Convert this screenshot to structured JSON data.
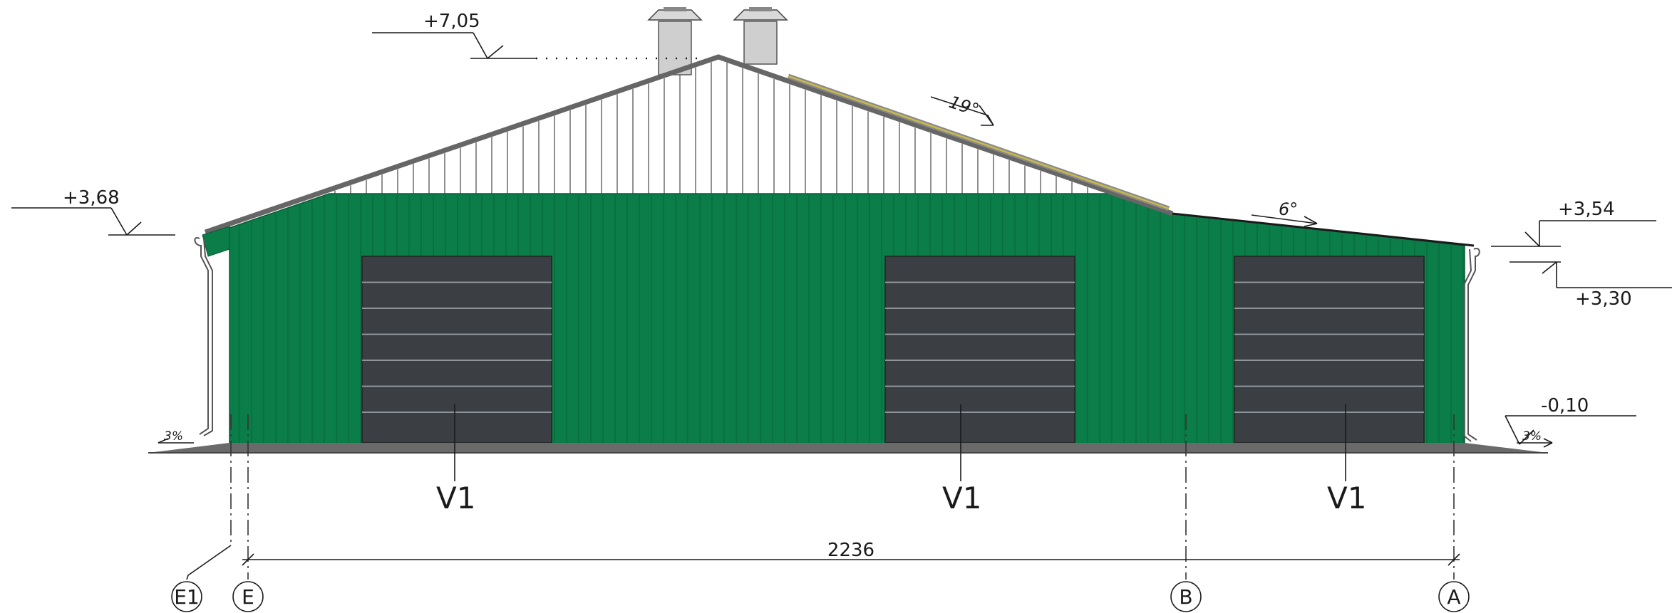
{
  "levels": {
    "ridge": "+7,05",
    "left_eave": "+3,68",
    "right_eave_top": "+3,54",
    "right_eave_bottom": "+3,30",
    "ground": "-0,10"
  },
  "slopes": {
    "main_roof": "19°",
    "lean_to_roof": "6°",
    "ground_left": "3%",
    "ground_right": "3%"
  },
  "gate_marks": [
    "V1",
    "V1",
    "V1"
  ],
  "dimension": "2236",
  "axes": [
    "E1",
    "E",
    "B",
    "A"
  ],
  "colors": {
    "wall": "#0a7d48",
    "gate": "#3b3e42",
    "roof": "#666666",
    "ground": "#6a6a6a",
    "chimney": "#c8c8c8",
    "solar_strip": "#c9b94a"
  }
}
